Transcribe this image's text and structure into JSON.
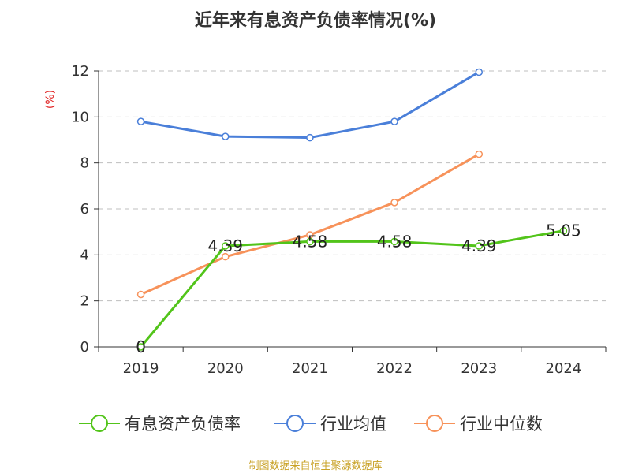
{
  "title": "近年来有息资产负债率情况(%)",
  "source": "制图数据来自恒生聚源数据库",
  "chart_data": {
    "type": "line",
    "categories": [
      "2019",
      "2020",
      "2021",
      "2022",
      "2023",
      "2024"
    ],
    "y_unit_label": "(%)",
    "ylim": [
      0,
      12
    ],
    "yticks": [
      0,
      2,
      4,
      6,
      8,
      10,
      12
    ],
    "grid": true,
    "legend_position": "bottom",
    "series": [
      {
        "name": "有息资产负债率",
        "color": "#52c41a",
        "values": [
          0,
          4.39,
          4.58,
          4.58,
          4.39,
          5.05
        ],
        "labels": [
          "0",
          "4.39",
          "4.58",
          "4.58",
          "4.39",
          "5.05"
        ]
      },
      {
        "name": "行业均值",
        "color": "#4a7fd9",
        "values": [
          9.8,
          9.15,
          9.1,
          9.8,
          11.95,
          null
        ]
      },
      {
        "name": "行业中位数",
        "color": "#f7925a",
        "values": [
          2.28,
          3.92,
          4.87,
          6.28,
          8.38,
          null
        ]
      }
    ]
  }
}
